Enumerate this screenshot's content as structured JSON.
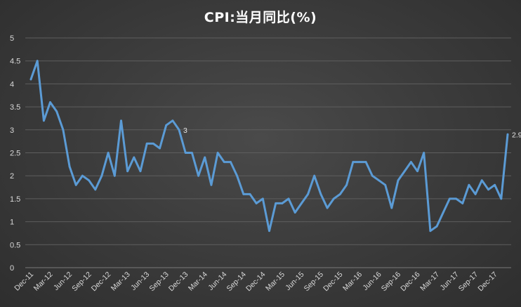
{
  "chart_data": {
    "type": "line",
    "title": "CPI:当月同比(%)",
    "xlabel": "",
    "ylabel": "",
    "ylim": [
      0,
      5
    ],
    "yticks": [
      "0",
      "0.5",
      "1",
      "1.5",
      "2",
      "2.5",
      "3",
      "3.5",
      "4",
      "4.5",
      "5"
    ],
    "grid": true,
    "legend": "none",
    "line_color": "#5b9bd5",
    "x_tick_labels": [
      "Dec-11",
      "Mar-12",
      "Jun-12",
      "Sep-12",
      "Dec-12",
      "Mar-13",
      "Jun-13",
      "Sep-13",
      "Dec-13",
      "Mar-14",
      "Jun-14",
      "Sep-14",
      "Dec-14",
      "Mar-15",
      "Jun-15",
      "Sep-15",
      "Dec-15",
      "Mar-16",
      "Jun-16",
      "Sep-16",
      "Dec-16",
      "Mar-17",
      "Jun-17",
      "Sep-17",
      "Dec-17"
    ],
    "x": [
      "Dec-11",
      "Jan-12",
      "Feb-12",
      "Mar-12",
      "Apr-12",
      "May-12",
      "Jun-12",
      "Jul-12",
      "Aug-12",
      "Sep-12",
      "Oct-12",
      "Nov-12",
      "Dec-12",
      "Jan-13",
      "Feb-13",
      "Mar-13",
      "Apr-13",
      "May-13",
      "Jun-13",
      "Jul-13",
      "Aug-13",
      "Sep-13",
      "Oct-13",
      "Nov-13",
      "Dec-13",
      "Jan-14",
      "Feb-14",
      "Mar-14",
      "Apr-14",
      "May-14",
      "Jun-14",
      "Jul-14",
      "Aug-14",
      "Sep-14",
      "Oct-14",
      "Nov-14",
      "Dec-14",
      "Jan-15",
      "Feb-15",
      "Mar-15",
      "Apr-15",
      "May-15",
      "Jun-15",
      "Jul-15",
      "Aug-15",
      "Sep-15",
      "Oct-15",
      "Nov-15",
      "Dec-15",
      "Jan-16",
      "Feb-16",
      "Mar-16",
      "Apr-16",
      "May-16",
      "Jun-16",
      "Jul-16",
      "Aug-16",
      "Sep-16",
      "Oct-16",
      "Nov-16",
      "Dec-16",
      "Jan-17",
      "Feb-17",
      "Mar-17",
      "Apr-17",
      "May-17",
      "Jun-17",
      "Jul-17",
      "Aug-17",
      "Sep-17",
      "Oct-17",
      "Nov-17",
      "Dec-17",
      "Jan-18",
      "Feb-18"
    ],
    "series": [
      {
        "values": [
          4.1,
          4.5,
          3.2,
          3.6,
          3.4,
          3.0,
          2.2,
          1.8,
          2.0,
          1.9,
          1.7,
          2.0,
          2.5,
          2.0,
          3.2,
          2.1,
          2.4,
          2.1,
          2.7,
          2.7,
          2.6,
          3.1,
          3.2,
          3.0,
          2.5,
          2.5,
          2.0,
          2.4,
          1.8,
          2.5,
          2.3,
          2.3,
          2.0,
          1.6,
          1.6,
          1.4,
          1.5,
          0.8,
          1.4,
          1.4,
          1.5,
          1.2,
          1.4,
          1.6,
          2.0,
          1.6,
          1.3,
          1.5,
          1.6,
          1.8,
          2.3,
          2.3,
          2.3,
          2.0,
          1.9,
          1.8,
          1.3,
          1.9,
          2.1,
          2.3,
          2.1,
          2.5,
          0.8,
          0.9,
          1.2,
          1.5,
          1.5,
          1.4,
          1.8,
          1.6,
          1.9,
          1.7,
          1.8,
          1.5,
          2.9
        ]
      }
    ],
    "annotations": [
      {
        "x": "Nov-13",
        "text": "3"
      },
      {
        "x": "Feb-18",
        "text": "2.9"
      }
    ]
  }
}
